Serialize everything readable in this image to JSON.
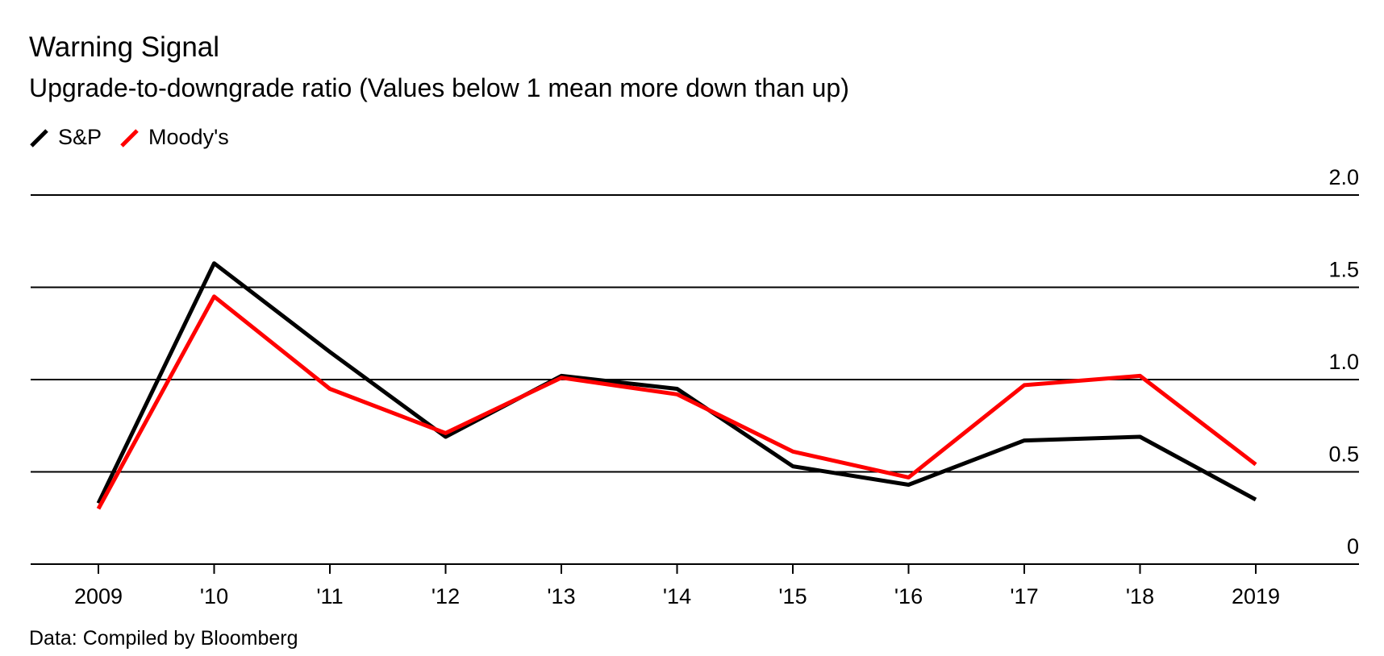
{
  "title": "Warning Signal",
  "subtitle": "Upgrade-to-downgrade ratio (Values below 1 mean more down than up)",
  "source": "Data: Compiled by Bloomberg",
  "colors": {
    "sp": "#000000",
    "moodys": "#ff0000",
    "grid": "#000000"
  },
  "chart_data": {
    "type": "line",
    "title": "Warning Signal",
    "subtitle": "Upgrade-to-downgrade ratio (Values below 1 mean more down than up)",
    "xlabel": "",
    "ylabel": "",
    "categories": [
      "2009",
      "'10",
      "'11",
      "'12",
      "'13",
      "'14",
      "'15",
      "'16",
      "'17",
      "'18",
      "2019"
    ],
    "y_ticks": [
      0,
      0.5,
      1.0,
      1.5,
      2.0
    ],
    "y_tick_labels": [
      "0",
      "0.5",
      "1.0",
      "1.5",
      "2.0"
    ],
    "ylim": [
      0,
      2.0
    ],
    "y_axis_side": "right",
    "grid": true,
    "legend_position": "top-left",
    "series": [
      {
        "name": "S&P",
        "color": "#000000",
        "values": [
          0.33,
          1.63,
          1.15,
          0.69,
          1.02,
          0.95,
          0.53,
          0.43,
          0.67,
          0.69,
          0.35
        ]
      },
      {
        "name": "Moody's",
        "color": "#ff0000",
        "values": [
          0.3,
          1.45,
          0.95,
          0.71,
          1.01,
          0.92,
          0.61,
          0.47,
          0.97,
          1.02,
          0.54
        ]
      }
    ]
  }
}
